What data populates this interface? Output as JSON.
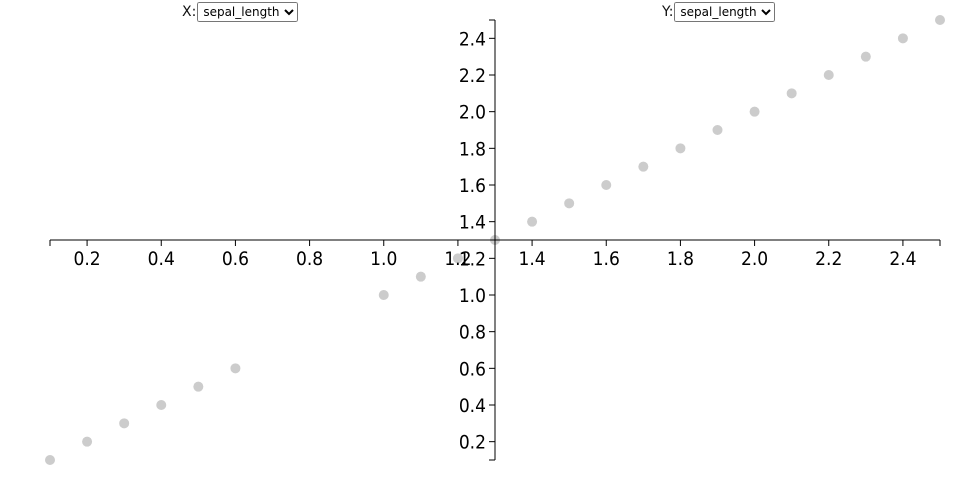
{
  "controls": {
    "x": {
      "label": "X:",
      "selected": "sepal_length"
    },
    "y": {
      "label": "Y:",
      "selected": "sepal_length"
    }
  },
  "chart_data": {
    "type": "scatter",
    "title": "",
    "xlabel": "",
    "ylabel": "",
    "xlim": [
      0.1,
      2.5
    ],
    "ylim": [
      0.1,
      2.5
    ],
    "grid": false,
    "point_color": "#cccccc",
    "axis_color": "#000000",
    "x_ticks": [
      0.2,
      0.4,
      0.6,
      0.8,
      1.0,
      1.2,
      1.4,
      1.6,
      1.8,
      2.0,
      2.2,
      2.4
    ],
    "y_ticks": [
      0.2,
      0.4,
      0.6,
      0.8,
      1.0,
      1.2,
      1.4,
      1.6,
      1.8,
      2.0,
      2.2,
      2.4
    ],
    "x": [
      0.1,
      0.2,
      0.3,
      0.4,
      0.5,
      0.6,
      1.0,
      1.1,
      1.2,
      1.3,
      1.4,
      1.5,
      1.6,
      1.7,
      1.8,
      1.9,
      2.0,
      2.1,
      2.2,
      2.3,
      2.4,
      2.5
    ],
    "y": [
      0.1,
      0.2,
      0.3,
      0.4,
      0.5,
      0.6,
      1.0,
      1.1,
      1.2,
      1.3,
      1.4,
      1.5,
      1.6,
      1.7,
      1.8,
      1.9,
      2.0,
      2.1,
      2.2,
      2.3,
      2.4,
      2.5
    ]
  }
}
